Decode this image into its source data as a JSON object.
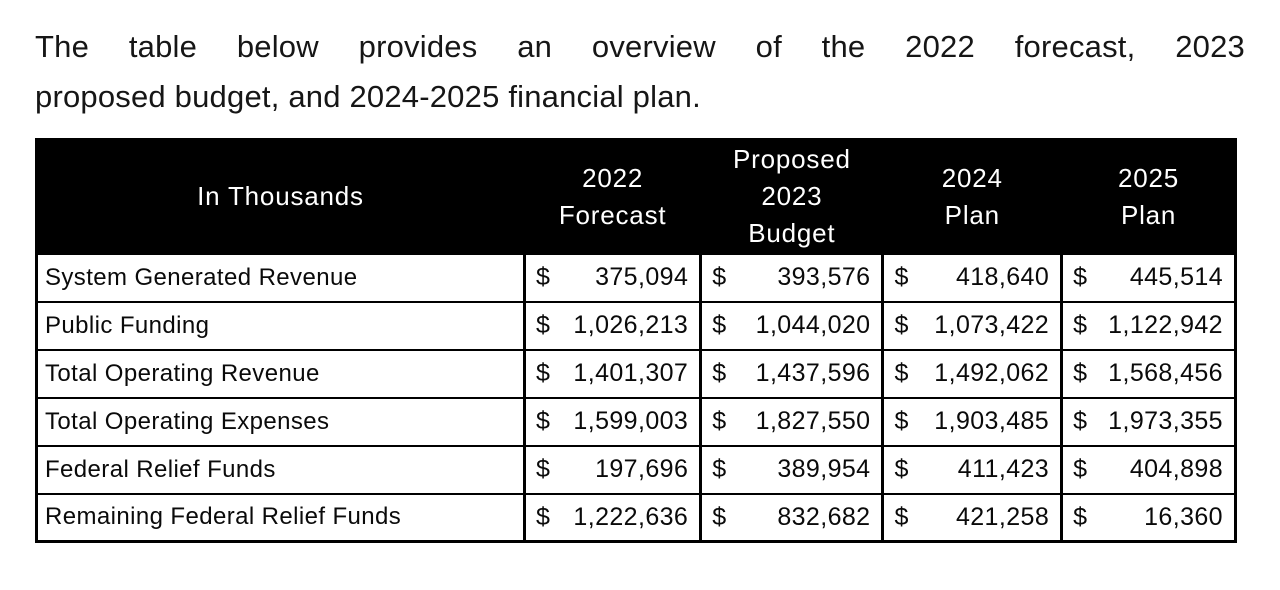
{
  "intro": {
    "line1": "The table below provides an overview of the 2022 forecast, 2023",
    "line2": "proposed budget, and 2024-2025 financial plan."
  },
  "table": {
    "currency_symbol": "$",
    "columns": [
      "In Thousands",
      "2022\nForecast",
      "Proposed\n2023\nBudget",
      "2024\nPlan",
      "2025\nPlan"
    ],
    "rows": [
      {
        "label": "System Generated Revenue",
        "values": [
          "375,094",
          "393,576",
          "418,640",
          "445,514"
        ]
      },
      {
        "label": "Public Funding",
        "values": [
          "1,026,213",
          "1,044,020",
          "1,073,422",
          "1,122,942"
        ]
      },
      {
        "label": "Total Operating Revenue",
        "values": [
          "1,401,307",
          "1,437,596",
          "1,492,062",
          "1,568,456"
        ]
      },
      {
        "label": "Total Operating Expenses",
        "values": [
          "1,599,003",
          "1,827,550",
          "1,903,485",
          "1,973,355"
        ]
      },
      {
        "label": "Federal Relief Funds",
        "values": [
          "197,696",
          "389,954",
          "411,423",
          "404,898"
        ]
      },
      {
        "label": "Remaining Federal Relief Funds",
        "values": [
          "1,222,636",
          "832,682",
          "421,258",
          "16,360"
        ]
      }
    ]
  }
}
